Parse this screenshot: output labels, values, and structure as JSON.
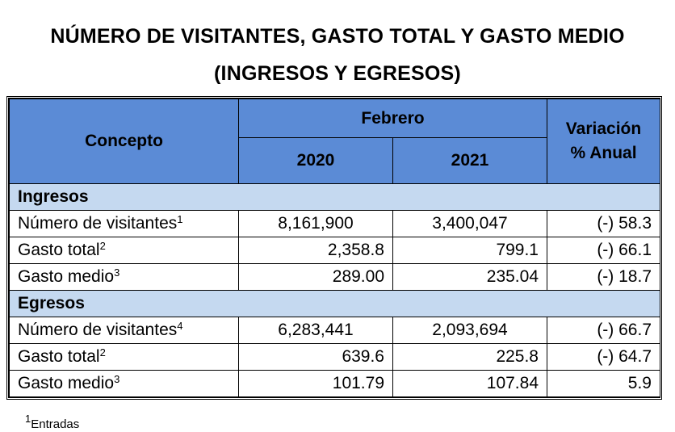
{
  "title_line1": "NÚMERO DE VISITANTES, GASTO TOTAL Y GASTO MEDIO",
  "title_line2": "(INGRESOS Y EGRESOS)",
  "header": {
    "concepto": "Concepto",
    "month": "Febrero",
    "year1": "2020",
    "year2": "2021",
    "variation_line1": "Variación",
    "variation_line2": "% Anual"
  },
  "sections": [
    {
      "name": "Ingresos",
      "rows": [
        {
          "label": "Número de visitantes",
          "sup": "1",
          "v2020": "8,161,900",
          "v2021": "3,400,047",
          "variation": "(-) 58.3"
        },
        {
          "label": "Gasto total",
          "sup": "2",
          "v2020": "2,358.8",
          "v2021": "799.1",
          "variation": "(-) 66.1"
        },
        {
          "label": "Gasto medio",
          "sup": "3",
          "v2020": "289.00",
          "v2021": "235.04",
          "variation": "(-) 18.7"
        }
      ]
    },
    {
      "name": "Egresos",
      "rows": [
        {
          "label": "Número de visitantes",
          "sup": "4",
          "v2020": "6,283,441",
          "v2021": "2,093,694",
          "variation": "(-) 66.7"
        },
        {
          "label": "Gasto total",
          "sup": "2",
          "v2020": "639.6",
          "v2021": "225.8",
          "variation": "(-) 64.7"
        },
        {
          "label": "Gasto medio",
          "sup": "3",
          "v2020": "101.79",
          "v2021": "107.84",
          "variation": "5.9"
        }
      ]
    }
  ],
  "footnote": {
    "sup": "1",
    "text": "Entradas"
  },
  "colors": {
    "header_blue": "#5b8bd6",
    "section_blue": "#c5d9f0"
  }
}
